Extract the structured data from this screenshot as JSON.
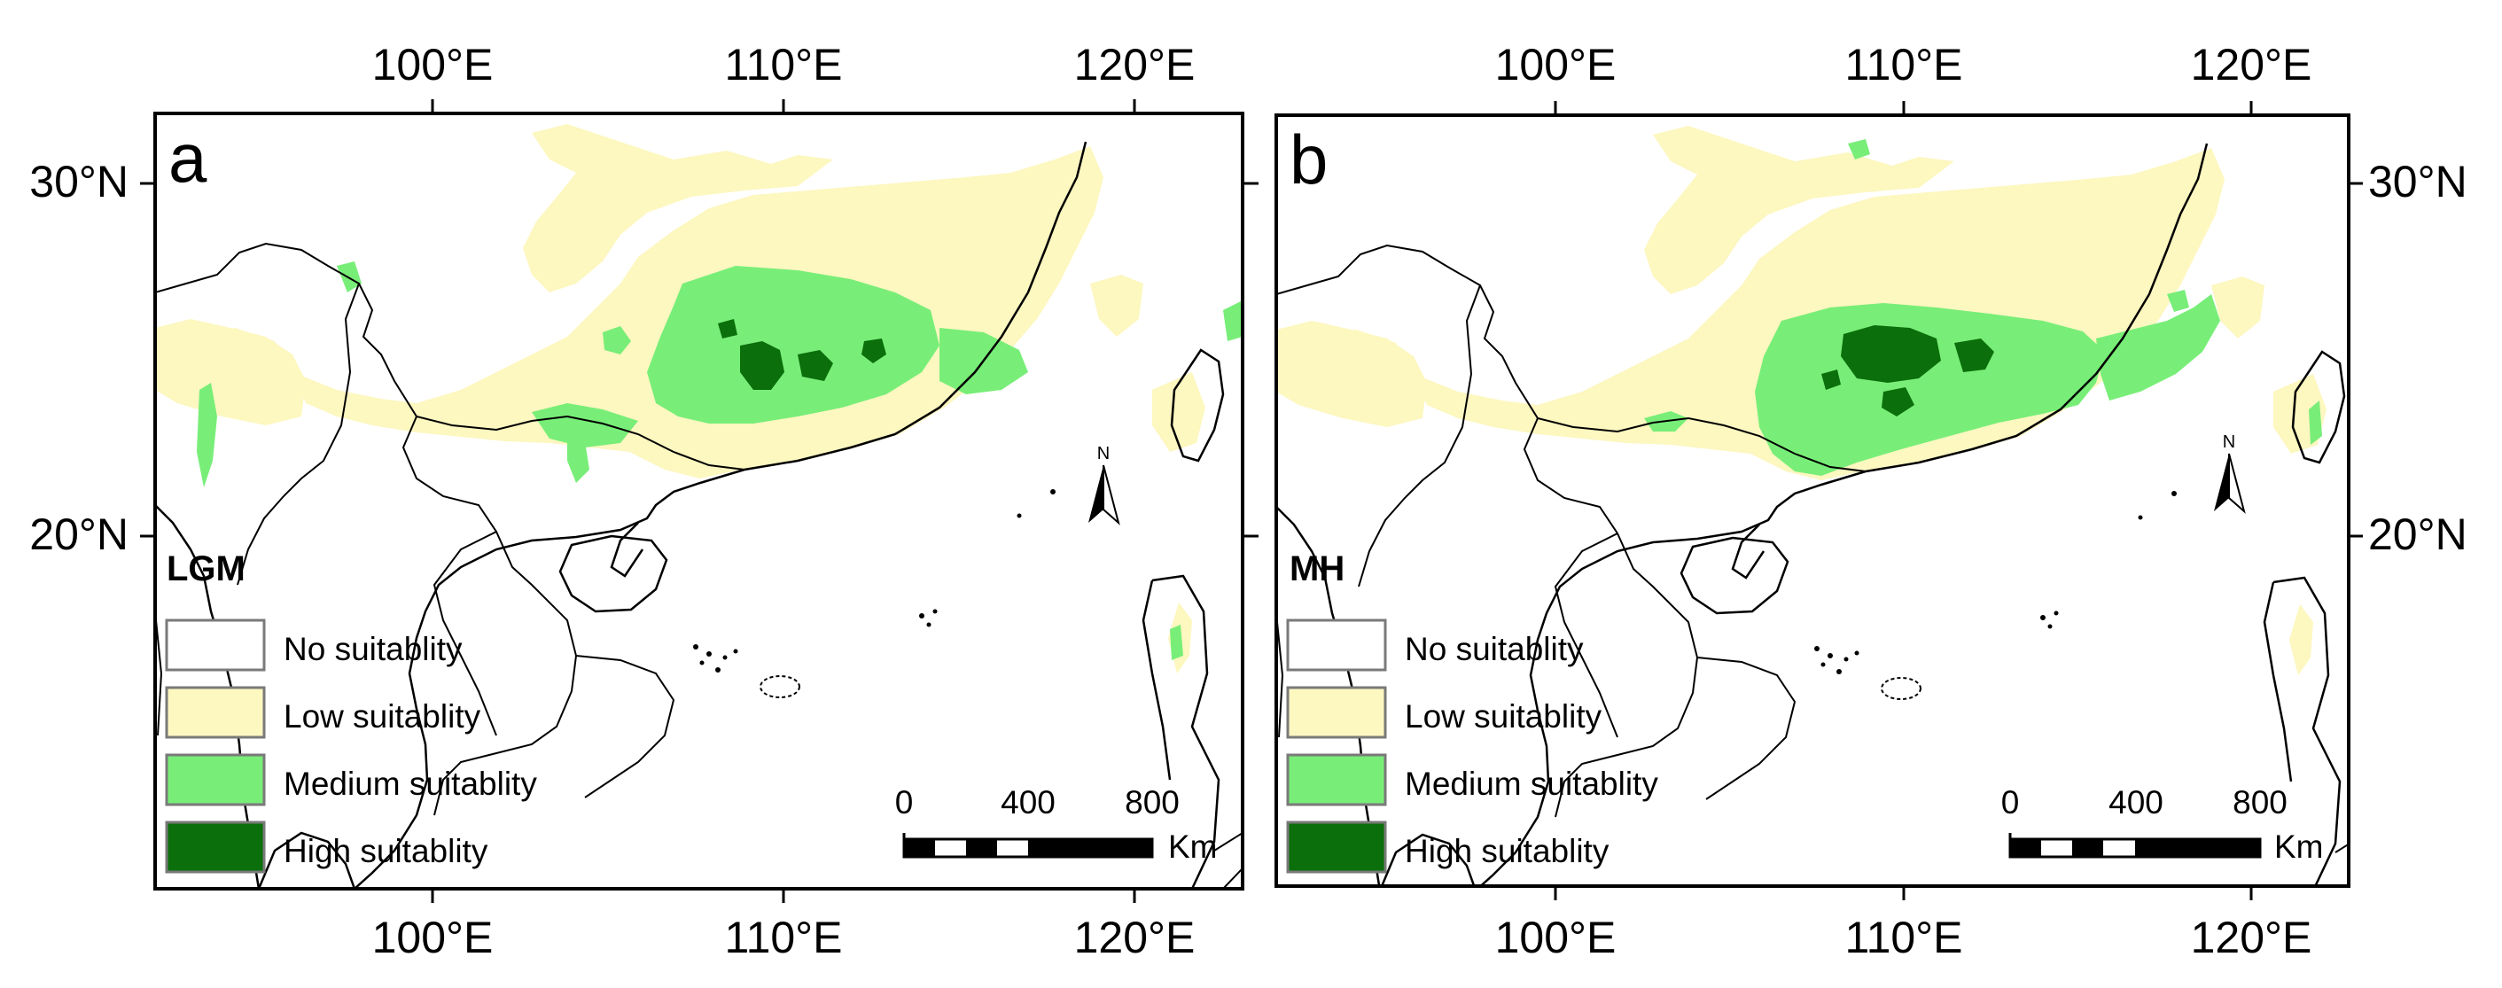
{
  "figure": {
    "panels": [
      {
        "letter": "a",
        "period": "LGM",
        "top_ticks": [
          "100°E",
          "110°E",
          "120°E"
        ],
        "bottom_ticks": [
          "100°E",
          "110°E",
          "120°E"
        ],
        "lat_ticks": [
          "30°N",
          "20°N"
        ],
        "scale": {
          "labels": [
            "0",
            "400",
            "800"
          ],
          "unit": "Km"
        },
        "north": "N"
      },
      {
        "letter": "b",
        "period": "MH",
        "top_ticks": [
          "100°E",
          "110°E",
          "120°E"
        ],
        "bottom_ticks": [
          "100°E",
          "110°E",
          "120°E"
        ],
        "lat_ticks": [
          "30°N",
          "20°N"
        ],
        "scale": {
          "labels": [
            "0",
            "400",
            "800"
          ],
          "unit": "Km"
        },
        "north": "N"
      }
    ],
    "legend": [
      {
        "label": "No suitablity",
        "color": "#ffffff"
      },
      {
        "label": "Low suitablity",
        "color": "#fdf7c0"
      },
      {
        "label": "Medium suitablity",
        "color": "#78ee78"
      },
      {
        "label": "High suitablity",
        "color": "#0b6f0b"
      }
    ],
    "colors": {
      "frame": "#000000",
      "sea": "#ffffff",
      "low": "#fdf7c0",
      "medium": "#78ee78",
      "high": "#0b6f0b"
    }
  }
}
